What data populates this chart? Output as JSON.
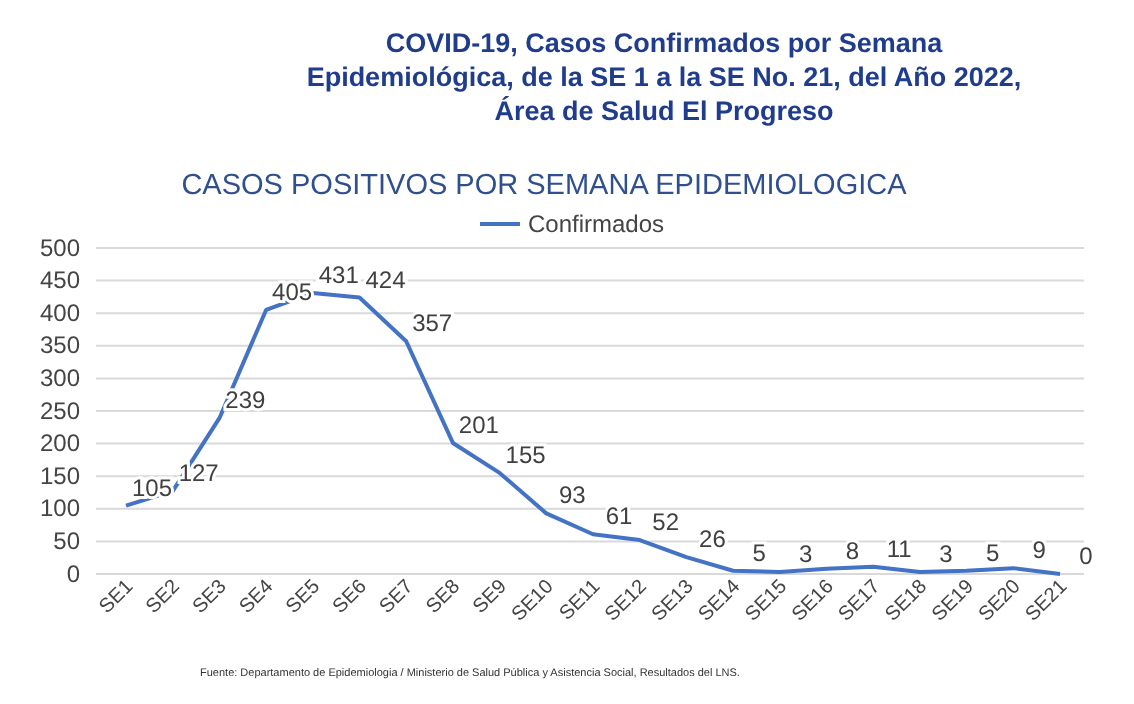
{
  "chart_data": {
    "type": "line",
    "title": "COVID-19, Casos Confirmados por Semana Epidemiológica,   de la SE 1 a la SE No. 21, del Año 2022, Área de Salud El Progreso",
    "subtitle": "CASOS POSITIVOS POR SEMANA EPIDEMIOLOGICA",
    "categories": [
      "SE1",
      "SE2",
      "SE3",
      "SE4",
      "SE5",
      "SE6",
      "SE7",
      "SE8",
      "SE9",
      "SE10",
      "SE11",
      "SE12",
      "SE13",
      "SE14",
      "SE15",
      "SE16",
      "SE17",
      "SE18",
      "SE19",
      "SE20",
      "SE21"
    ],
    "series": [
      {
        "name": "Confirmados",
        "color": "#4472c4",
        "values": [
          105,
          127,
          239,
          405,
          431,
          424,
          357,
          201,
          155,
          93,
          61,
          52,
          26,
          5,
          3,
          8,
          11,
          3,
          5,
          9,
          0
        ]
      }
    ],
    "ylim": [
      0,
      500
    ],
    "yticks": [
      0,
      50,
      100,
      150,
      200,
      250,
      300,
      350,
      400,
      450,
      500
    ],
    "grid": "y",
    "legend": "top",
    "data_labels": true,
    "marker": "none",
    "line_style": "solid",
    "annotations": [
      "Fuente: Departamento de Epidemiologia / Ministerio de Salud Pública y Asistencia Social, Resultados del LNS."
    ]
  }
}
